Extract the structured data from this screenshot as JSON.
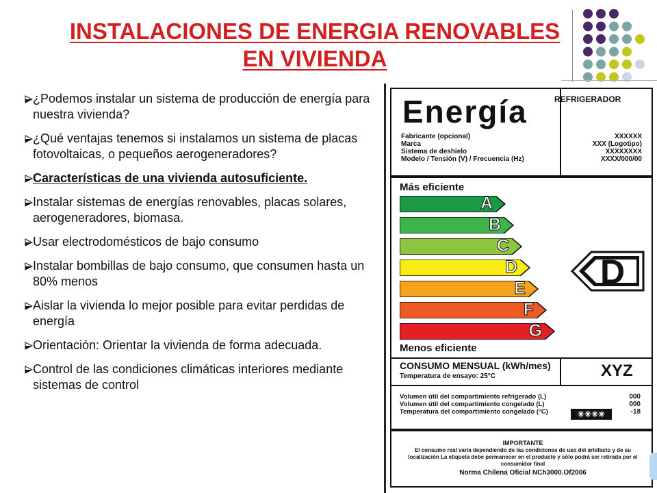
{
  "slide": {
    "title_line1": "INSTALACIONES DE ENERGIA RENOVABLES",
    "title_line2": "EN VIVIENDA",
    "colors": {
      "title": "#d21f1f",
      "dot_purple": "#4a2867",
      "dot_teal": "#7ba4a4",
      "dot_lime": "#c2c71d",
      "dot_lavender": "#cfd2e8"
    },
    "bullet_icon": "triangle-arrow-icon",
    "bullets": [
      {
        "text": "¿Podemos instalar un sistema de producción de energía para nuestra vivienda?"
      },
      {
        "text": "¿Qué ventajas tenemos si instalamos un sistema de placas fotovoltaicas, o pequeños aerogeneradores?"
      },
      {
        "text": "Características de una vivienda autosuficiente."
      },
      {
        "text": "Instalar sistemas de energías renovables, placas solares, aerogeneradores, biomasa."
      },
      {
        "text": "Usar electrodomésticos de bajo consumo"
      },
      {
        "text": "Instalar bombillas de bajo consumo, que consumen hasta un 80% menos"
      },
      {
        "text": "Aislar la vivienda lo mejor posible para evitar perdidas de energía"
      },
      {
        "text": "Orientación: Orientar la vivienda de forma adecuada."
      },
      {
        "text": "Control de las condiciones climáticas interiores mediante sistemas de control"
      }
    ]
  },
  "energy_label": {
    "brand": "Energía",
    "appliance": "REFRIGERADOR",
    "fields": [
      "Fabricante (opcional)",
      "Marca",
      "Sistema de deshielo",
      "Modelo / Tensión (V) / Frecuencia (Hz)"
    ],
    "field_values": [
      "XXXXXX",
      "XXX (Logotipo)",
      "XXXXXXXX",
      "XXXX/000/00"
    ],
    "more_efficient": "Más eficiente",
    "less_efficient": "Menos eficiente",
    "classes": [
      {
        "letter": "A",
        "color": "#1a9a45"
      },
      {
        "letter": "B",
        "color": "#3db54a"
      },
      {
        "letter": "C",
        "color": "#8cc63f"
      },
      {
        "letter": "D",
        "color": "#f7ec13"
      },
      {
        "letter": "E",
        "color": "#f7a21b"
      },
      {
        "letter": "F",
        "color": "#ee5a24"
      },
      {
        "letter": "G",
        "color": "#e51f26"
      }
    ],
    "rating": "D",
    "consumption_title": "CONSUMO MENSUAL (kWh/mes)",
    "consumption_temp": "Temperatura de ensayo: 25°C",
    "consumption_value": "XYZ",
    "volumes": [
      "Volumen útil del compartimiento refrigerado (L)",
      "Volumen útil del compartimiento congelado (L)",
      "Temperatura del compartimiento congelado (°C)"
    ],
    "volume_values": [
      "000",
      "000",
      "-18"
    ],
    "stars": "✳✳✳✳",
    "important_title": "IMPORTANTE",
    "important_text": "El consumo real varía dependiendo de las condiciones de uso del artefacto y de su localización La etiqueta debe permanecer en el producto y sólo podrá ser retirada por el consumidor final",
    "norm": "Norma Chilena Oficial NCh3000.Of2006"
  }
}
